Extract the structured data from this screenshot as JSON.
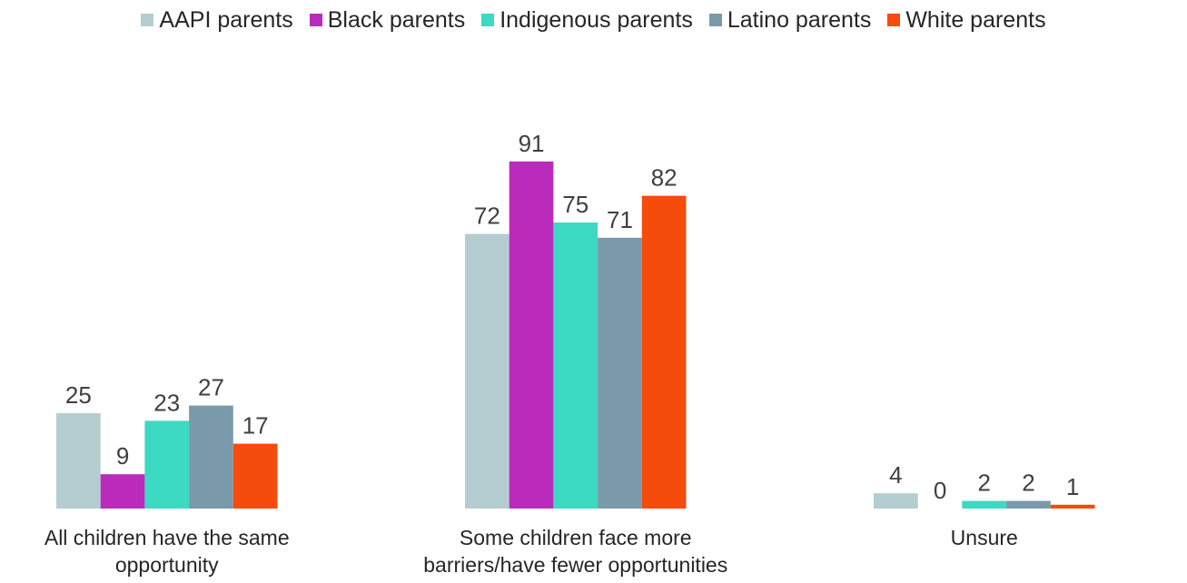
{
  "chart_data": {
    "type": "bar",
    "title": "",
    "xlabel": "",
    "ylabel": "",
    "ylim": [
      0,
      100
    ],
    "grid": false,
    "legend_position": "top",
    "categories": [
      [
        "All children have the same",
        "opportunity"
      ],
      [
        "Some children face more",
        "barriers/have fewer opportunities"
      ],
      [
        "Unsure"
      ]
    ],
    "series": [
      {
        "name": "AAPI parents",
        "color": "#b4cdd1",
        "values": [
          25,
          72,
          4
        ]
      },
      {
        "name": "Black parents",
        "color": "#bb2bbb",
        "values": [
          9,
          91,
          0
        ]
      },
      {
        "name": "Indigenous parents",
        "color": "#3cd9c3",
        "values": [
          23,
          75,
          2
        ]
      },
      {
        "name": "Latino parents",
        "color": "#7a99ab",
        "values": [
          27,
          71,
          2
        ]
      },
      {
        "name": "White parents",
        "color": "#f54b0b",
        "values": [
          17,
          82,
          1
        ]
      }
    ]
  }
}
